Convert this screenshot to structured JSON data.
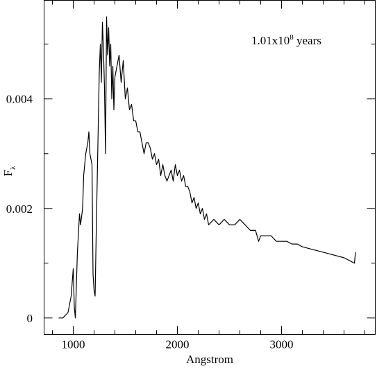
{
  "chart_data": {
    "type": "line",
    "annotation": {
      "base": "1.01x10",
      "exponent": "8",
      "rest": " years"
    },
    "xlabel": "Angstrom",
    "ylabel": {
      "base": "F",
      "subscript": "λ"
    },
    "xlim": [
      720,
      3900
    ],
    "ylim": [
      -0.0003,
      0.0058
    ],
    "xticks": [
      1000,
      2000,
      3000
    ],
    "yticks": [
      0,
      0.002,
      0.004
    ],
    "xminorticks": [
      800,
      1200,
      1400,
      1600,
      1800,
      2200,
      2400,
      2600,
      2800,
      3200,
      3400,
      3600,
      3800
    ],
    "yminorticks": [
      0.001,
      0.003,
      0.005
    ],
    "color": "#000000",
    "x": [
      860,
      900,
      950,
      980,
      1000,
      1010,
      1020,
      1040,
      1060,
      1070,
      1090,
      1100,
      1120,
      1140,
      1150,
      1160,
      1180,
      1190,
      1200,
      1210,
      1220,
      1240,
      1250,
      1260,
      1270,
      1280,
      1290,
      1300,
      1310,
      1320,
      1330,
      1340,
      1350,
      1360,
      1370,
      1380,
      1390,
      1400,
      1420,
      1440,
      1460,
      1480,
      1500,
      1520,
      1540,
      1560,
      1580,
      1600,
      1620,
      1640,
      1660,
      1680,
      1700,
      1720,
      1740,
      1760,
      1780,
      1800,
      1820,
      1840,
      1860,
      1880,
      1900,
      1920,
      1940,
      1960,
      1980,
      2000,
      2020,
      2040,
      2060,
      2080,
      2100,
      2120,
      2140,
      2160,
      2180,
      2200,
      2220,
      2240,
      2260,
      2280,
      2300,
      2350,
      2400,
      2450,
      2500,
      2550,
      2600,
      2650,
      2700,
      2750,
      2780,
      2800,
      2850,
      2900,
      2950,
      3000,
      3050,
      3100,
      3150,
      3200,
      3300,
      3400,
      3500,
      3600,
      3650,
      3700,
      3710
    ],
    "values": [
      0,
      0,
      0.0001,
      0.0004,
      0.0009,
      0.0002,
      0,
      0.0012,
      0.0019,
      0.0017,
      0.002,
      0.0026,
      0.003,
      0.0032,
      0.0034,
      0.003,
      0.0028,
      0.0008,
      0.0005,
      0.0004,
      0.0015,
      0.0035,
      0.0045,
      0.005,
      0.0043,
      0.0054,
      0.0049,
      0.0042,
      0.003,
      0.0055,
      0.0048,
      0.0053,
      0.0046,
      0.005,
      0.004,
      0.0046,
      0.0038,
      0.0044,
      0.0046,
      0.0048,
      0.0043,
      0.0047,
      0.004,
      0.0042,
      0.0038,
      0.0039,
      0.0036,
      0.0036,
      0.0034,
      0.0034,
      0.0032,
      0.003,
      0.0032,
      0.0032,
      0.0031,
      0.0029,
      0.003,
      0.0028,
      0.0029,
      0.0026,
      0.0028,
      0.0026,
      0.0025,
      0.0026,
      0.0027,
      0.0025,
      0.0028,
      0.0026,
      0.0027,
      0.0025,
      0.0026,
      0.0024,
      0.0024,
      0.0023,
      0.0021,
      0.0022,
      0.002,
      0.0021,
      0.0019,
      0.002,
      0.0018,
      0.0019,
      0.0017,
      0.0018,
      0.0017,
      0.0018,
      0.0017,
      0.0017,
      0.0018,
      0.0017,
      0.0016,
      0.0016,
      0.0014,
      0.0015,
      0.0015,
      0.0015,
      0.0014,
      0.0014,
      0.0014,
      0.00135,
      0.00135,
      0.0013,
      0.00125,
      0.0012,
      0.00115,
      0.0011,
      0.00105,
      0.001,
      0.0012
    ]
  }
}
